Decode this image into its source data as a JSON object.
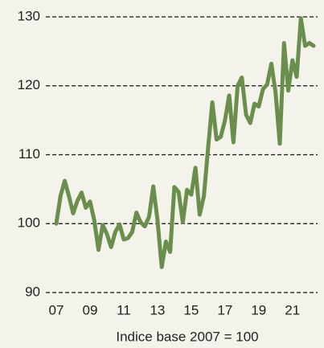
{
  "chart_data": {
    "type": "line",
    "x_label": "Indice base 2007 = 100",
    "x": [
      2007,
      2007.25,
      2007.5,
      2007.75,
      2008,
      2008.25,
      2008.5,
      2008.75,
      2009,
      2009.25,
      2009.5,
      2009.75,
      2010,
      2010.25,
      2010.5,
      2010.75,
      2011,
      2011.25,
      2011.5,
      2011.75,
      2012,
      2012.25,
      2012.5,
      2012.75,
      2013,
      2013.25,
      2013.5,
      2013.75,
      2014,
      2014.25,
      2014.5,
      2014.75,
      2015,
      2015.25,
      2015.5,
      2015.75,
      2016,
      2016.25,
      2016.5,
      2016.75,
      2017,
      2017.25,
      2017.5,
      2017.75,
      2018,
      2018.25,
      2018.5,
      2018.75,
      2019,
      2019.25,
      2019.5,
      2019.75,
      2020,
      2020.25,
      2020.5,
      2020.75,
      2021,
      2021.25,
      2021.5,
      2021.75,
      2022,
      2022.25
    ],
    "series": [
      {
        "color": "#6a8f4c",
        "values": [
          100,
          104,
          106.2,
          104,
          101.5,
          103.3,
          104.5,
          102.3,
          103.2,
          100.5,
          96.2,
          99.8,
          98.5,
          96.6,
          98.8,
          99.9,
          97.7,
          97.9,
          98.8,
          101.6,
          100.2,
          99.6,
          101,
          105.4,
          100.5,
          93.7,
          97.4,
          95.9,
          105.3,
          104.6,
          100.2,
          104.9,
          104.2,
          108.1,
          101.3,
          104,
          111,
          117.6,
          112.2,
          112.6,
          115,
          118.6,
          111.8,
          120,
          121.2,
          115.8,
          114.6,
          117.4,
          117,
          119.5,
          120.2,
          123.2,
          119,
          111.6,
          126.2,
          119.3,
          123.7,
          121.3,
          129.8,
          125.8,
          126.2,
          125.8
        ]
      }
    ],
    "xlim": [
      2007,
      2022.25
    ],
    "xticks": [
      {
        "value": 2007,
        "label": "07"
      },
      {
        "value": 2009,
        "label": "09"
      },
      {
        "value": 2011,
        "label": "11"
      },
      {
        "value": 2013,
        "label": "13"
      },
      {
        "value": 2015,
        "label": "15"
      },
      {
        "value": 2017,
        "label": "17"
      },
      {
        "value": 2019,
        "label": "19"
      },
      {
        "value": 2021,
        "label": "21"
      }
    ],
    "ylim": [
      90,
      130
    ],
    "yticks": [
      90,
      100,
      110,
      120,
      130
    ],
    "grid": true
  }
}
